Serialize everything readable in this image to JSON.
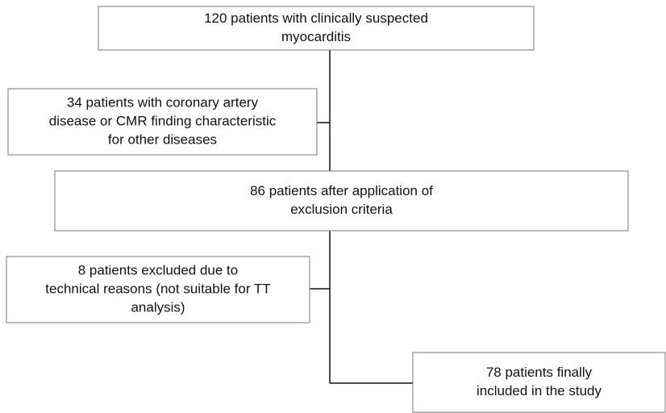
{
  "nodes": [
    {
      "lines": [
        "120 patients with clinically suspected",
        "myocarditis"
      ]
    },
    {
      "lines": [
        "34 patients with coronary artery",
        "disease or CMR finding characteristic",
        "for other diseases"
      ]
    },
    {
      "lines": [
        "86 patients after application of",
        "exclusion criteria"
      ]
    },
    {
      "lines": [
        "8 patients excluded due to",
        "technical reasons (not suitable for TT",
        "analysis)"
      ]
    },
    {
      "lines": [
        "78 patients finally",
        "included in the study"
      ]
    }
  ]
}
